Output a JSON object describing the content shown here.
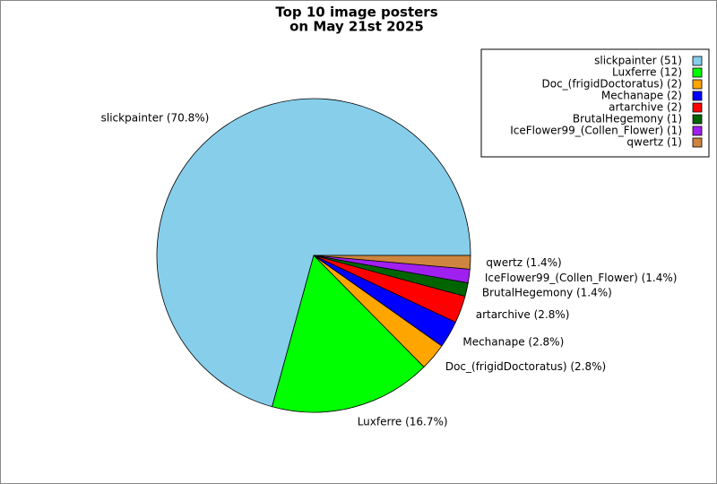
{
  "chart_data": {
    "type": "pie",
    "title": [
      "Top 10 image posters",
      "on May 21st 2025"
    ],
    "categories": [
      "slickpainter (51)",
      "Luxferre (12)",
      "Doc_(frigidDoctoratus) (2)",
      "Mechanape (2)",
      "artarchive (2)",
      "BrutalHegemony (1)",
      "IceFlower99_(Collen_Flower) (1)",
      "qwertz (1)"
    ],
    "values": [
      70.8,
      16.7,
      2.8,
      2.8,
      2.8,
      1.4,
      1.4,
      1.4
    ],
    "value_labels": [
      "slickpainter (70.8%)",
      "Luxferre (16.7%)",
      "Doc_(frigidDoctoratus) (2.8%)",
      "Mechanape (2.8%)",
      "artarchive (2.8%)",
      "BrutalHegemony (1.4%)",
      "IceFlower99_(Collen_Flower) (1.4%)",
      "qwertz (1.4%)"
    ],
    "colors": [
      "#87ceeb",
      "#00ff00",
      "#ffa500",
      "#0000ff",
      "#ff0000",
      "#006400",
      "#a020f0",
      "#cd853f"
    ],
    "legend": "upper right"
  }
}
